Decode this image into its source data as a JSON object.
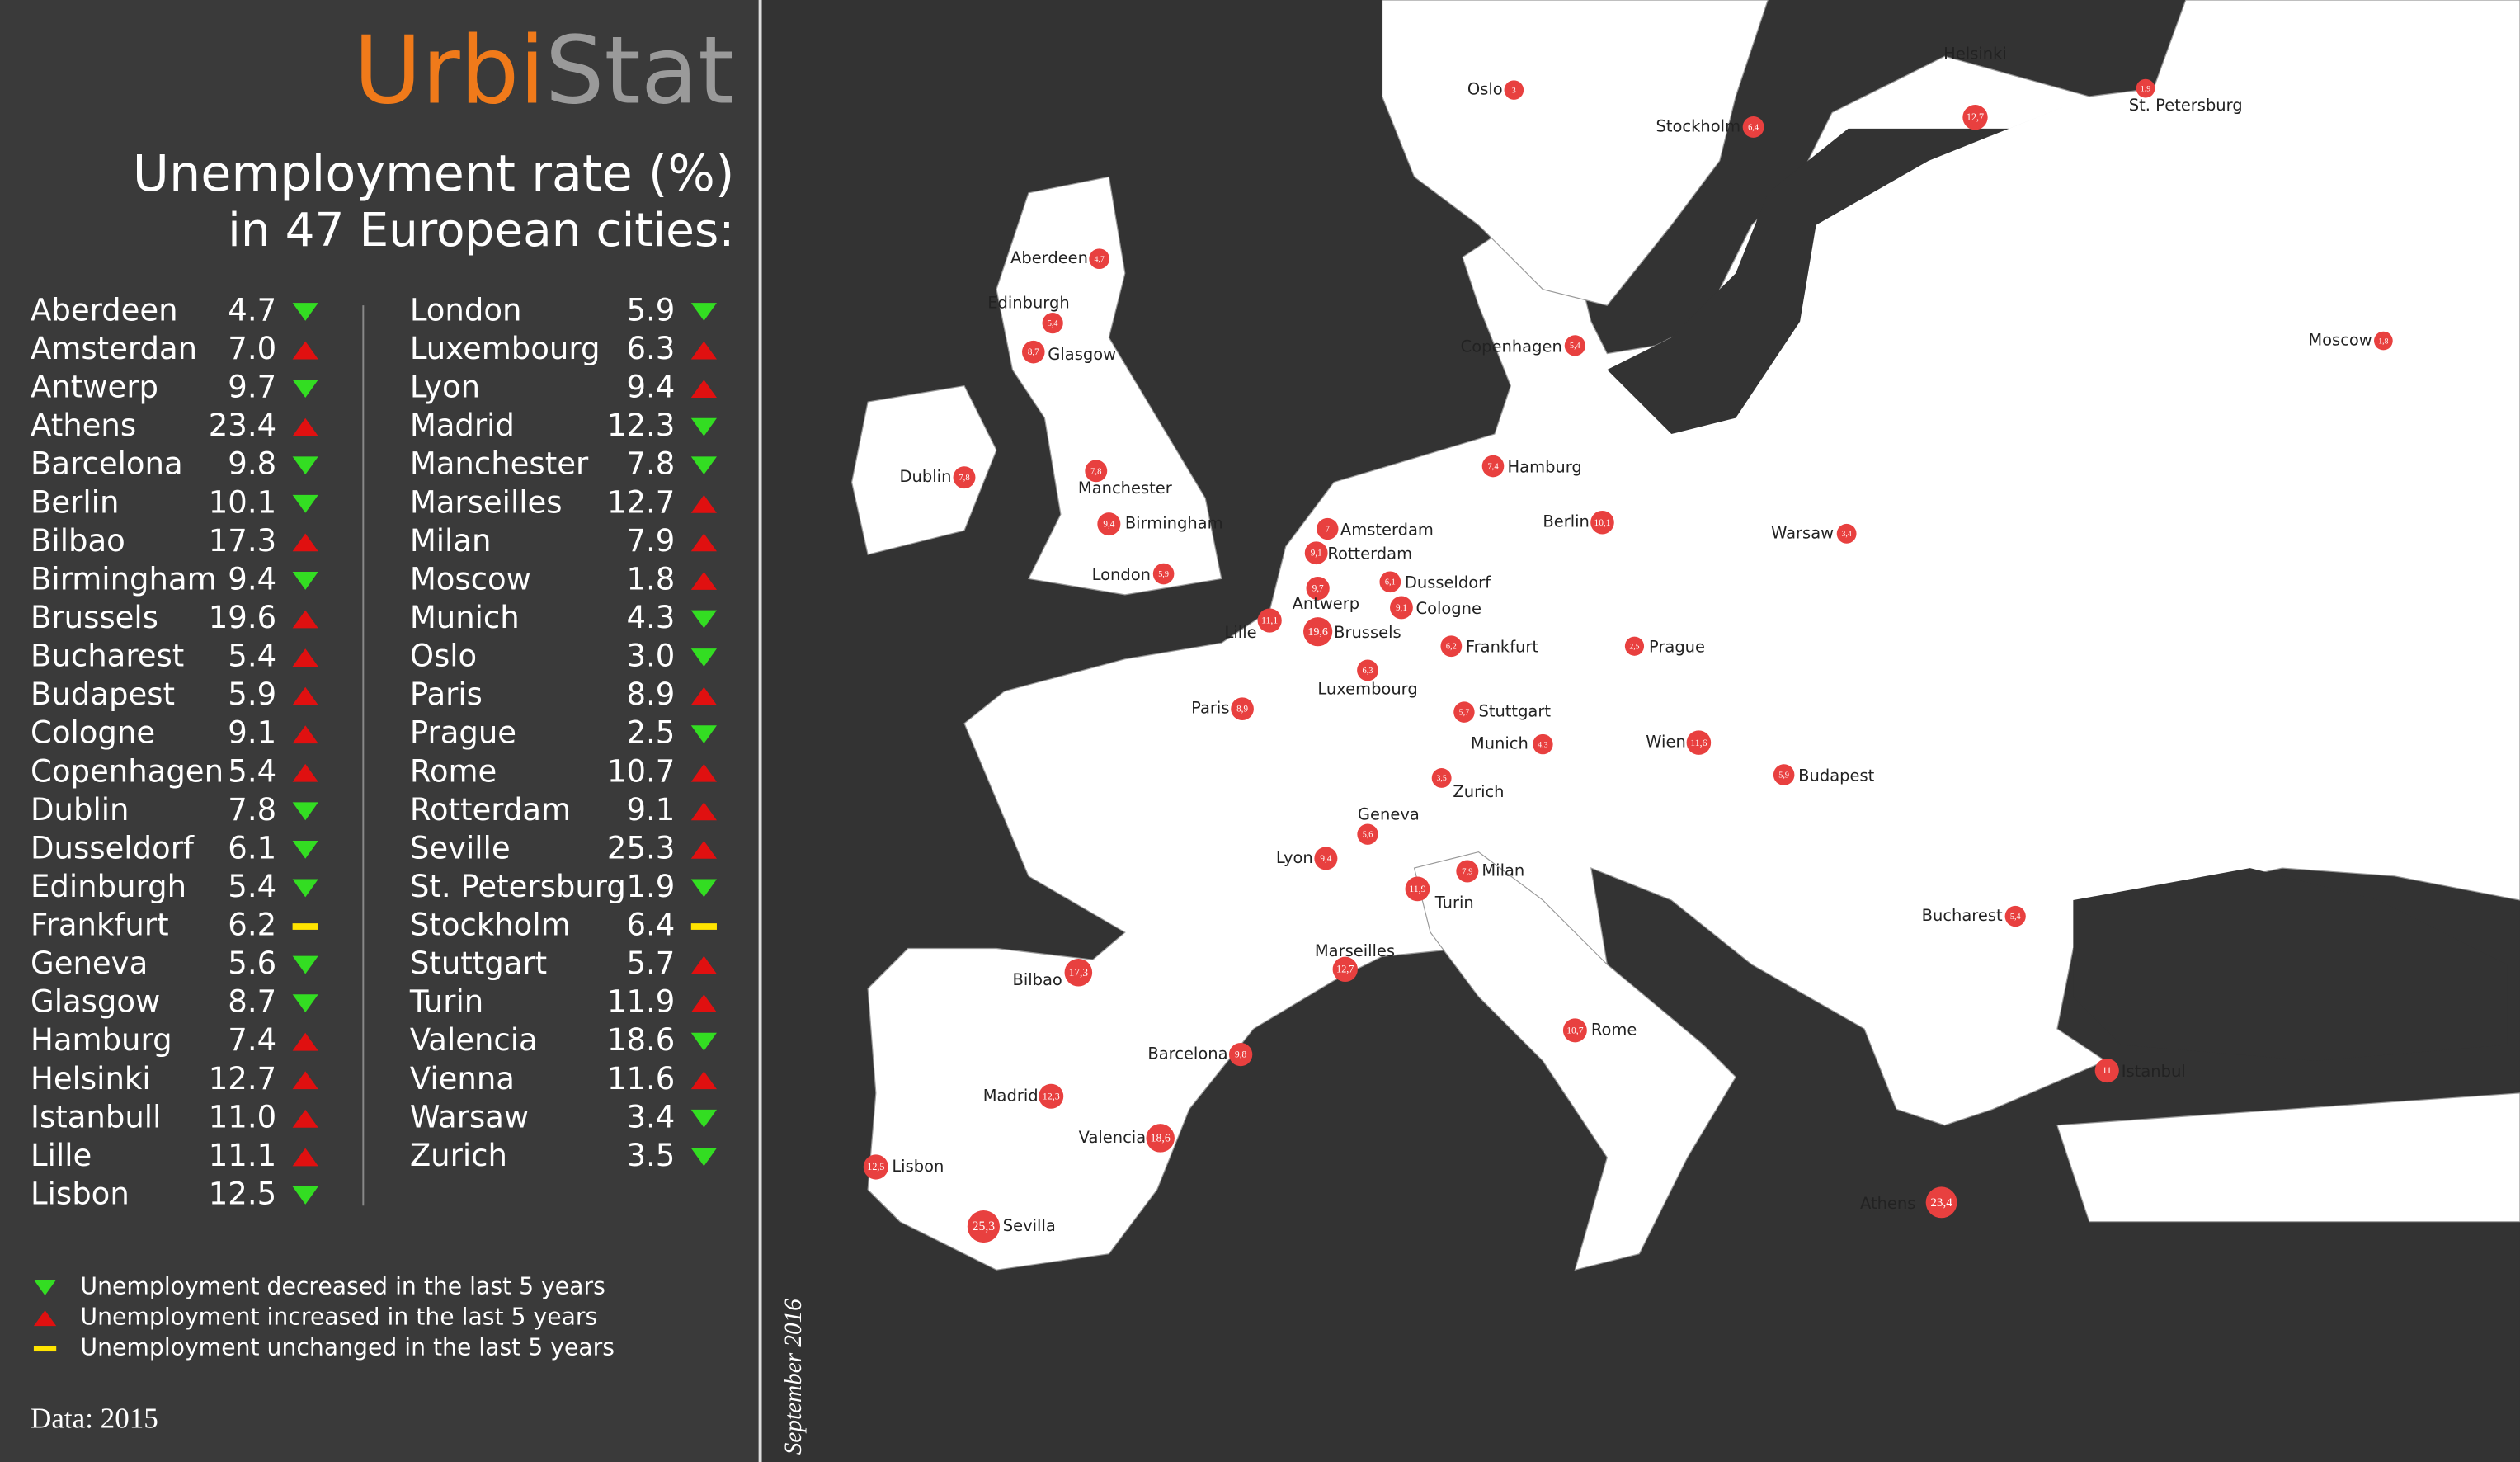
{
  "brand": {
    "part1": "Urbi",
    "part2": "Stat"
  },
  "title": {
    "line1": "Unemployment rate (%)",
    "line2": "in 47 European cities:"
  },
  "table": {
    "rows": [
      {
        "city": "Aberdeen",
        "value": "4.7",
        "trend": "down"
      },
      {
        "city": "Amsterdan",
        "value": "7.0",
        "trend": "up"
      },
      {
        "city": "Antwerp",
        "value": "9.7",
        "trend": "down"
      },
      {
        "city": "Athens",
        "value": "23.4",
        "trend": "up"
      },
      {
        "city": "Barcelona",
        "value": "9.8",
        "trend": "down"
      },
      {
        "city": "Berlin",
        "value": "10.1",
        "trend": "down"
      },
      {
        "city": "Bilbao",
        "value": "17.3",
        "trend": "up"
      },
      {
        "city": "Birmingham",
        "value": "9.4",
        "trend": "down"
      },
      {
        "city": "Brussels",
        "value": "19.6",
        "trend": "up"
      },
      {
        "city": "Bucharest",
        "value": "5.4",
        "trend": "up"
      },
      {
        "city": "Budapest",
        "value": "5.9",
        "trend": "up"
      },
      {
        "city": "Cologne",
        "value": "9.1",
        "trend": "up"
      },
      {
        "city": "Copenhagen",
        "value": "5.4",
        "trend": "up"
      },
      {
        "city": "Dublin",
        "value": "7.8",
        "trend": "down"
      },
      {
        "city": "Dusseldorf",
        "value": "6.1",
        "trend": "down"
      },
      {
        "city": "Edinburgh",
        "value": "5.4",
        "trend": "down"
      },
      {
        "city": "Frankfurt",
        "value": "6.2",
        "trend": "flat"
      },
      {
        "city": "Geneva",
        "value": "5.6",
        "trend": "down"
      },
      {
        "city": "Glasgow",
        "value": "8.7",
        "trend": "down"
      },
      {
        "city": "Hamburg",
        "value": "7.4",
        "trend": "up"
      },
      {
        "city": "Helsinki",
        "value": "12.7",
        "trend": "up"
      },
      {
        "city": "Istanbull",
        "value": "11.0",
        "trend": "up"
      },
      {
        "city": "Lille",
        "value": "11.1",
        "trend": "up"
      },
      {
        "city": "Lisbon",
        "value": "12.5",
        "trend": "down"
      },
      {
        "city": "London",
        "value": "5.9",
        "trend": "down"
      },
      {
        "city": "Luxembourg",
        "value": "6.3",
        "trend": "up"
      },
      {
        "city": "Lyon",
        "value": "9.4",
        "trend": "up"
      },
      {
        "city": "Madrid",
        "value": "12.3",
        "trend": "down"
      },
      {
        "city": "Manchester",
        "value": "7.8",
        "trend": "down"
      },
      {
        "city": "Marseilles",
        "value": "12.7",
        "trend": "up"
      },
      {
        "city": "Milan",
        "value": "7.9",
        "trend": "up"
      },
      {
        "city": "Moscow",
        "value": "1.8",
        "trend": "up"
      },
      {
        "city": "Munich",
        "value": "4.3",
        "trend": "down"
      },
      {
        "city": "Oslo",
        "value": "3.0",
        "trend": "down"
      },
      {
        "city": "Paris",
        "value": "8.9",
        "trend": "up"
      },
      {
        "city": "Prague",
        "value": "2.5",
        "trend": "down"
      },
      {
        "city": "Rome",
        "value": "10.7",
        "trend": "up"
      },
      {
        "city": "Rotterdam",
        "value": "9.1",
        "trend": "up"
      },
      {
        "city": "Seville",
        "value": "25.3",
        "trend": "up"
      },
      {
        "city": "St. Petersburg",
        "value": "1.9",
        "trend": "down"
      },
      {
        "city": "Stockholm",
        "value": "6.4",
        "trend": "flat"
      },
      {
        "city": "Stuttgart",
        "value": "5.7",
        "trend": "up"
      },
      {
        "city": "Turin",
        "value": "11.9",
        "trend": "up"
      },
      {
        "city": "Valencia",
        "value": "18.6",
        "trend": "down"
      },
      {
        "city": "Vienna",
        "value": "11.6",
        "trend": "up"
      },
      {
        "city": "Warsaw",
        "value": "3.4",
        "trend": "down"
      },
      {
        "city": "Zurich",
        "value": "3.5",
        "trend": "down"
      }
    ]
  },
  "legend": [
    {
      "symbol": "down",
      "text": "Unemployment decreased in the last 5 years"
    },
    {
      "symbol": "up",
      "text": "Unemployment increased in the last 5 years"
    },
    {
      "symbol": "flat",
      "text": "Unemployment unchanged in the last 5 years"
    }
  ],
  "note": "Data: 2015",
  "date": "September 2016",
  "map": {
    "markers": [
      {
        "name": "Oslo",
        "label": "3"
      },
      {
        "name": "Stockholm",
        "label": "6,4"
      },
      {
        "name": "Helsinki",
        "label": "12,7"
      },
      {
        "name": "St. Petersburg",
        "label": "1,9"
      },
      {
        "name": "Moscow",
        "label": "1,8"
      },
      {
        "name": "Aberdeen",
        "label": "4,7"
      },
      {
        "name": "Edinburgh",
        "label": "5,4"
      },
      {
        "name": "Glasgow",
        "label": "8,7"
      },
      {
        "name": "Copenhagen",
        "label": "5,4"
      },
      {
        "name": "Dublin",
        "label": "7,8"
      },
      {
        "name": "Manchester",
        "label": "7,8"
      },
      {
        "name": "Hamburg",
        "label": "7,4"
      },
      {
        "name": "Birmingham",
        "label": "9,4"
      },
      {
        "name": "Amsterdam",
        "label": "7"
      },
      {
        "name": "Rotterdam",
        "label": "9,1"
      },
      {
        "name": "London",
        "label": "5,9"
      },
      {
        "name": "Berlin",
        "label": "10,1"
      },
      {
        "name": "Warsaw",
        "label": "3,4"
      },
      {
        "name": "Dusseldorf",
        "label": "6,1"
      },
      {
        "name": "Antwerp",
        "label": "9,7"
      },
      {
        "name": "Cologne",
        "label": "9,1"
      },
      {
        "name": "Lille",
        "label": "11,1"
      },
      {
        "name": "Brussels",
        "label": "19,6"
      },
      {
        "name": "Frankfurt",
        "label": "6,2"
      },
      {
        "name": "Prague",
        "label": "2,5"
      },
      {
        "name": "Luxembourg",
        "label": "6,3"
      },
      {
        "name": "Paris",
        "label": "8,9"
      },
      {
        "name": "Stuttgart",
        "label": "5,7"
      },
      {
        "name": "Munich",
        "label": "4,3"
      },
      {
        "name": "Wien",
        "label": "11,6"
      },
      {
        "name": "Zurich",
        "label": "3,5"
      },
      {
        "name": "Budapest",
        "label": "5,9"
      },
      {
        "name": "Geneva",
        "label": "5,6"
      },
      {
        "name": "Lyon",
        "label": "9,4"
      },
      {
        "name": "Milan",
        "label": "7,9"
      },
      {
        "name": "Turin",
        "label": "11,9"
      },
      {
        "name": "Bucharest",
        "label": "5,4"
      },
      {
        "name": "Marseilles",
        "label": "12,7"
      },
      {
        "name": "Bilbao",
        "label": "17,3"
      },
      {
        "name": "Rome",
        "label": "10,7"
      },
      {
        "name": "Barcelona",
        "label": "9,8"
      },
      {
        "name": "Istanbul",
        "label": "11"
      },
      {
        "name": "Madrid",
        "label": "12,3"
      },
      {
        "name": "Valencia",
        "label": "18,6"
      },
      {
        "name": "Lisbon",
        "label": "12,5"
      },
      {
        "name": "Athens",
        "label": "23,4"
      },
      {
        "name": "Sevilla",
        "label": "25,3"
      }
    ]
  }
}
